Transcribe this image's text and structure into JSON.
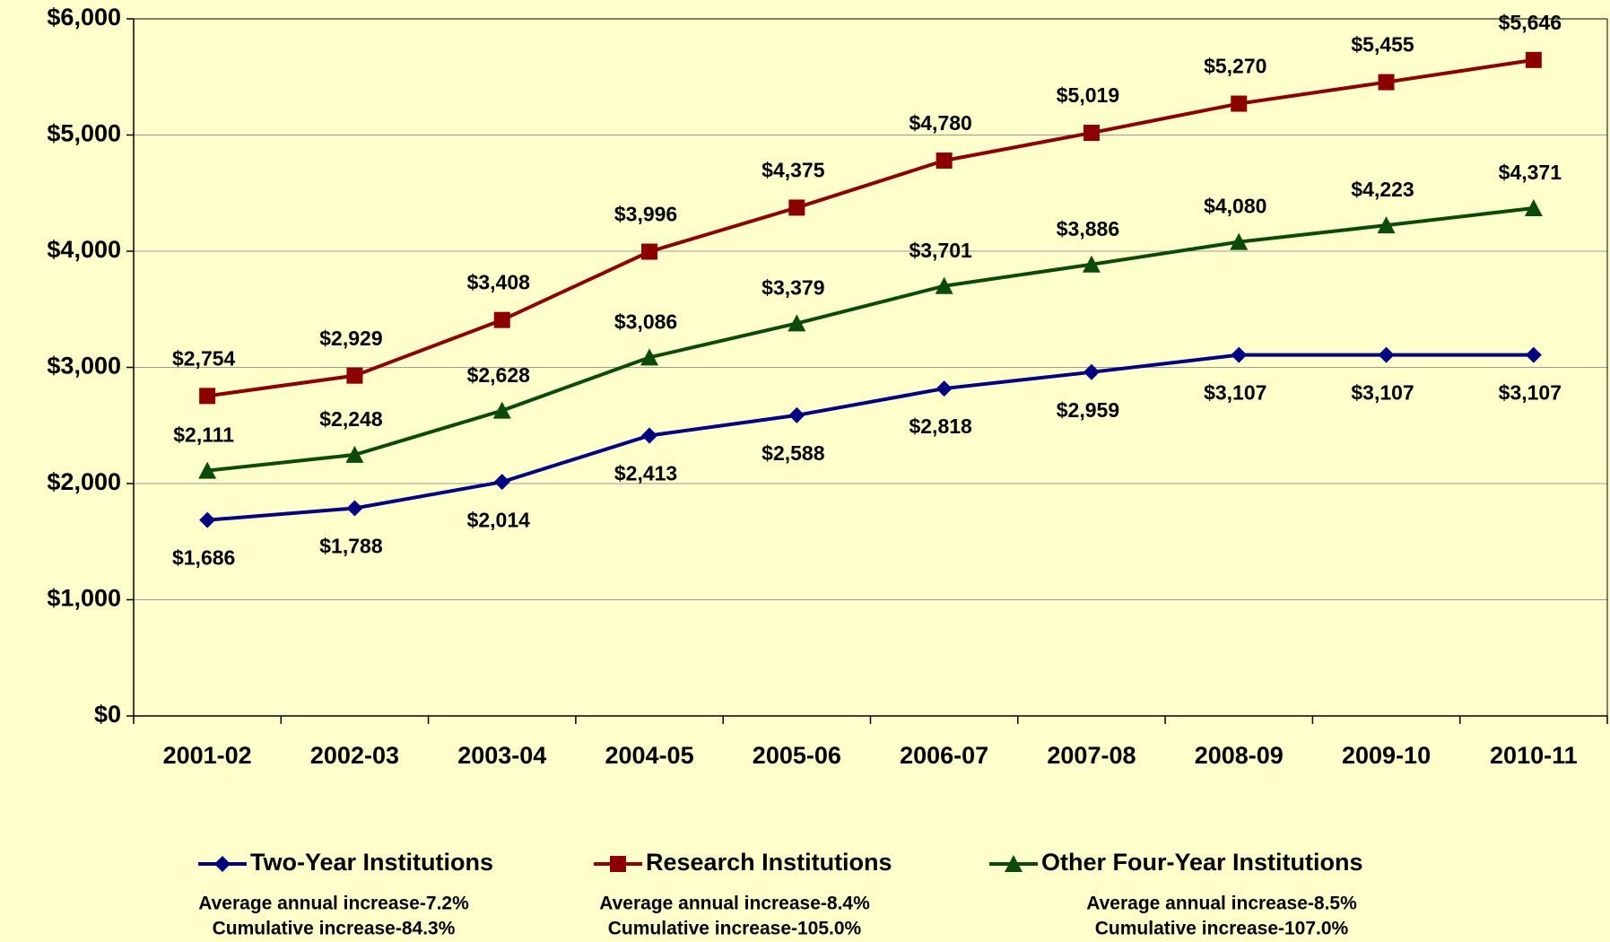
{
  "chart_data": {
    "type": "line",
    "categories": [
      "2001-02",
      "2002-03",
      "2003-04",
      "2004-05",
      "2005-06",
      "2006-07",
      "2007-08",
      "2008-09",
      "2009-10",
      "2010-11"
    ],
    "series": [
      {
        "name": "Two-Year Institutions",
        "color": "#000080",
        "marker": "diamond",
        "values": [
          1686,
          1788,
          2014,
          2413,
          2588,
          2818,
          2959,
          3107,
          3107,
          3107
        ],
        "value_labels": [
          "$1,686",
          "$1,788",
          "$2,014",
          "$2,413",
          "$2,588",
          "$2,818",
          "$2,959",
          "$3,107",
          "$3,107",
          "$3,107"
        ]
      },
      {
        "name": "Research Institutions",
        "color": "#8B0000",
        "marker": "square",
        "values": [
          2754,
          2929,
          3408,
          3996,
          4375,
          4780,
          5019,
          5270,
          5455,
          5646
        ],
        "value_labels": [
          "$2,754",
          "$2,929",
          "$3,408",
          "$3,996",
          "$4,375",
          "$4,780",
          "$5,019",
          "$5,270",
          "$5,455",
          "$5,646"
        ]
      },
      {
        "name": "Other Four-Year Institutions",
        "color": "#0B4A0B",
        "marker": "triangle",
        "values": [
          2111,
          2248,
          2628,
          3086,
          3379,
          3701,
          3886,
          4080,
          4223,
          4371
        ],
        "value_labels": [
          "$2,111",
          "$2,248",
          "$2,628",
          "$3,086",
          "$3,379",
          "$3,701",
          "$3,886",
          "$4,080",
          "$4,223",
          "$4,371"
        ]
      }
    ],
    "ylim": [
      0,
      6000
    ],
    "yticks": [
      {
        "value": 0,
        "label": "$0"
      },
      {
        "value": 1000,
        "label": "$1,000"
      },
      {
        "value": 2000,
        "label": "$2,000"
      },
      {
        "value": 3000,
        "label": "$3,000"
      },
      {
        "value": 4000,
        "label": "$4,000"
      },
      {
        "value": 5000,
        "label": "$5,000"
      },
      {
        "value": 6000,
        "label": "$6,000"
      }
    ],
    "grid": true,
    "legend": "bottom",
    "annotations": [
      [
        "Average annual increase-7.2%",
        "Cumulative increase-84.3%"
      ],
      [
        "Average annual increase-8.4%",
        "Cumulative increase-105.0%"
      ],
      [
        "Average annual increase-8.5%",
        "Cumulative increase-107.0%"
      ]
    ]
  }
}
